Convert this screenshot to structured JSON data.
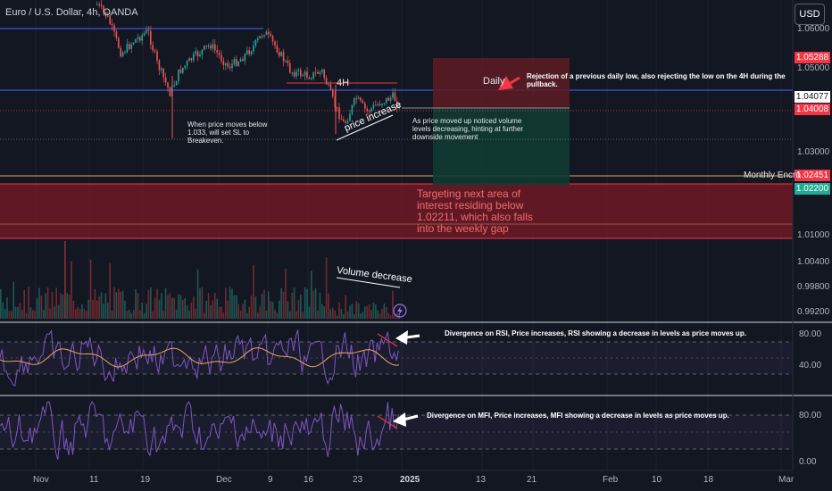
{
  "header": {
    "title": "Euro / U.S. Dollar, 4h, OANDA",
    "currency_button": "USD"
  },
  "price_axis": {
    "ticks": [
      "1.06000",
      "1.05000",
      "1.03000",
      "1.01000",
      "1.00400",
      "0.99800",
      "0.99200"
    ],
    "tags": [
      {
        "label": "1.05288",
        "color": "#f23645"
      },
      {
        "label": "1.04077",
        "color": "#ffffff"
      },
      {
        "label": "1.04008",
        "color": "#f23645"
      },
      {
        "label": "1.02451",
        "color": "#f23645"
      },
      {
        "label": "1.02200",
        "color": "#22ab94"
      }
    ]
  },
  "rsi_axis": {
    "ticks": [
      "80.00",
      "40.00"
    ]
  },
  "mfi_axis": {
    "ticks": [
      "80.00",
      "0.00"
    ]
  },
  "time_axis": [
    "Nov",
    "11",
    "19",
    "Dec",
    "9",
    "16",
    "23",
    "2025",
    "13",
    "21",
    "Feb",
    "10",
    "18",
    "Mar"
  ],
  "annotations": {
    "daily_label": "Daily",
    "four_h_label": "4H",
    "rejection_note": "Rejection of a previous daily low, also rejecting the low on the 4H during the pullback.",
    "sl_note": "When price moves below 1.033, will set SL to Breakeven.",
    "volume_note": "As price moved up noticed volume levels decreasing, hinting at further downside movement",
    "price_increase": "price increase",
    "monthly_label": "Monthly Encro",
    "target_note": "Targeting next area of interest residing below 1.02211, which also falls into the weekly gap",
    "volume_decrease": "Volume decrease",
    "rsi_divergence": "Divergence on RSI, Price increases, RSI showing a decrease in levels as price moves up.",
    "mfi_divergence": "Divergence on MFI, Price increases, MFI showing a decrease in levels as price moves up."
  },
  "colors": {
    "background": "#131722",
    "bull": "#26a69a",
    "bear": "#ef5350",
    "level_line": "#3f51d6",
    "zone": "#801922",
    "short_zone": "#5a1a22",
    "profit_zone": "#0f3a30",
    "indicator_line": "#7e57c2",
    "rsi_ma": "#f0a35c"
  }
}
